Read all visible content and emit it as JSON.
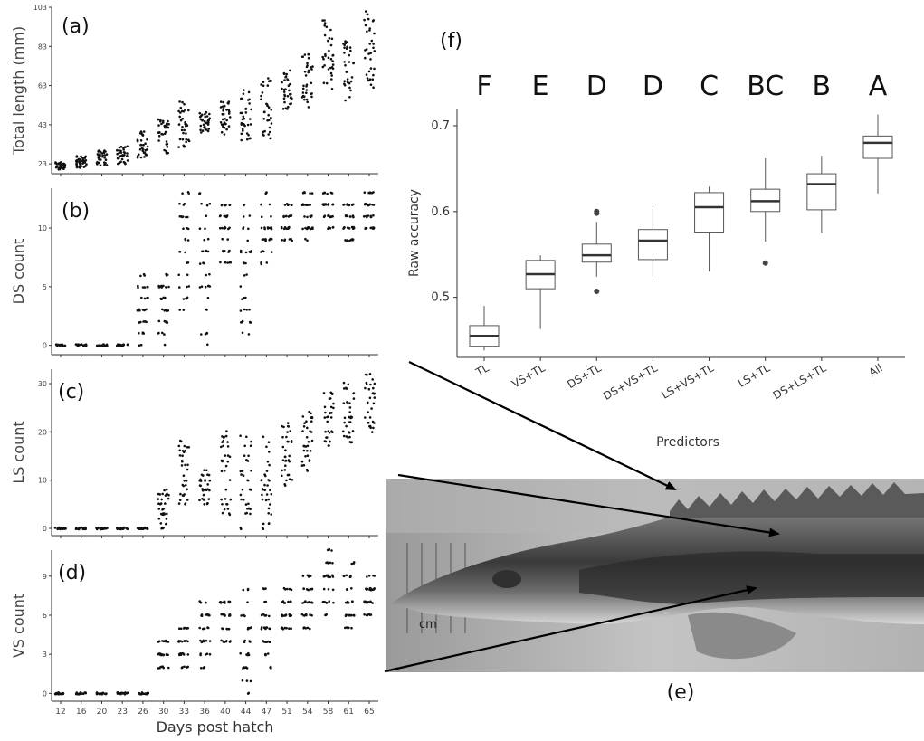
{
  "panels": {
    "a": "(a)",
    "b": "(b)",
    "c": "(c)",
    "d": "(d)",
    "e": "(e)",
    "f": "(f)"
  },
  "photo": {
    "description": "Photograph of juvenile sturgeon head and anterior body with dorsal and lateral scutes",
    "arrow_targets": [
      "dorsal scutes",
      "lateral scutes",
      "ventral scutes"
    ]
  },
  "chart_data": [
    {
      "id": "a",
      "type": "scatter",
      "ylabel": "Total length (mm)",
      "xlabel": "",
      "ylim": [
        18,
        103
      ],
      "yticks": [
        23,
        43,
        63,
        83,
        103
      ],
      "x_categories": [
        "12",
        "16",
        "20",
        "23",
        "26",
        "30",
        "33",
        "36",
        "40",
        "44",
        "47",
        "51",
        "54",
        "58",
        "61",
        "65"
      ],
      "group_ranges": [
        [
          20,
          24
        ],
        [
          21,
          27
        ],
        [
          22,
          30
        ],
        [
          23,
          32
        ],
        [
          26,
          40
        ],
        [
          28,
          46
        ],
        [
          30,
          55
        ],
        [
          38,
          50
        ],
        [
          38,
          55
        ],
        [
          35,
          61
        ],
        [
          35,
          67
        ],
        [
          50,
          71
        ],
        [
          52,
          79
        ],
        [
          60,
          98
        ],
        [
          55,
          86
        ],
        [
          62,
          101
        ]
      ]
    },
    {
      "id": "b",
      "type": "scatter",
      "ylabel": "DS count",
      "xlabel": "",
      "ylim": [
        -0.8,
        13.4
      ],
      "yticks": [
        0,
        5,
        10
      ],
      "x_categories": [
        "12",
        "16",
        "20",
        "23",
        "26",
        "30",
        "33",
        "36",
        "40",
        "44",
        "47",
        "51",
        "54",
        "58",
        "61",
        "65"
      ],
      "group_ranges": [
        [
          0,
          0
        ],
        [
          0,
          0
        ],
        [
          0,
          0
        ],
        [
          0,
          0
        ],
        [
          0,
          6
        ],
        [
          0,
          6
        ],
        [
          3,
          13
        ],
        [
          0,
          13
        ],
        [
          7,
          12
        ],
        [
          0,
          12
        ],
        [
          7,
          13
        ],
        [
          9,
          12
        ],
        [
          9,
          13
        ],
        [
          10,
          13
        ],
        [
          9,
          12
        ],
        [
          10,
          13
        ]
      ]
    },
    {
      "id": "c",
      "type": "scatter",
      "ylabel": "LS count",
      "xlabel": "",
      "ylim": [
        -1.5,
        33
      ],
      "yticks": [
        0,
        10,
        20,
        30
      ],
      "x_categories": [
        "12",
        "16",
        "20",
        "23",
        "26",
        "30",
        "33",
        "36",
        "40",
        "44",
        "47",
        "51",
        "54",
        "58",
        "61",
        "65"
      ],
      "group_ranges": [
        [
          0,
          0
        ],
        [
          0,
          0
        ],
        [
          0,
          0
        ],
        [
          0,
          0
        ],
        [
          0,
          0
        ],
        [
          0,
          8
        ],
        [
          5,
          19
        ],
        [
          5,
          12
        ],
        [
          3,
          20
        ],
        [
          0,
          20
        ],
        [
          0,
          19
        ],
        [
          9,
          22
        ],
        [
          12,
          24
        ],
        [
          17,
          29
        ],
        [
          18,
          30
        ],
        [
          20,
          33
        ]
      ]
    },
    {
      "id": "d",
      "type": "scatter",
      "ylabel": "VS count",
      "xlabel": "Days post hatch",
      "ylim": [
        -0.6,
        11
      ],
      "yticks": [
        0,
        3,
        6,
        9
      ],
      "x_categories": [
        "12",
        "16",
        "20",
        "23",
        "26",
        "30",
        "33",
        "36",
        "40",
        "44",
        "47",
        "51",
        "54",
        "58",
        "61",
        "65"
      ],
      "group_ranges": [
        [
          0,
          0
        ],
        [
          0,
          0
        ],
        [
          0,
          0
        ],
        [
          0,
          0
        ],
        [
          0,
          0
        ],
        [
          2,
          4
        ],
        [
          2,
          5
        ],
        [
          2,
          7
        ],
        [
          4,
          7
        ],
        [
          0,
          8
        ],
        [
          2,
          8
        ],
        [
          5,
          8
        ],
        [
          5,
          9
        ],
        [
          6,
          11
        ],
        [
          5,
          10
        ],
        [
          6,
          9
        ]
      ]
    },
    {
      "id": "f",
      "type": "box",
      "ylabel": "Raw accuracy",
      "xlabel": "Predictors",
      "ylim": [
        0.43,
        0.72
      ],
      "yticks": [
        0.5,
        0.6,
        0.7
      ],
      "categories": [
        "TL",
        "VS+TL",
        "DS+TL",
        "DS+VS+TL",
        "LS+VS+TL",
        "LS+TL",
        "DS+LS+TL",
        "All"
      ],
      "significance": [
        "F",
        "E",
        "D",
        "D",
        "C",
        "BC",
        "B",
        "A"
      ],
      "boxes": [
        {
          "min": 0.438,
          "q1": 0.443,
          "median": 0.455,
          "q3": 0.467,
          "max": 0.49,
          "outliers": []
        },
        {
          "min": 0.463,
          "q1": 0.51,
          "median": 0.527,
          "q3": 0.543,
          "max": 0.549,
          "outliers": []
        },
        {
          "min": 0.524,
          "q1": 0.541,
          "median": 0.549,
          "q3": 0.562,
          "max": 0.588,
          "outliers": [
            0.598,
            0.6,
            0.507
          ]
        },
        {
          "min": 0.524,
          "q1": 0.544,
          "median": 0.566,
          "q3": 0.579,
          "max": 0.603,
          "outliers": []
        },
        {
          "min": 0.53,
          "q1": 0.576,
          "median": 0.605,
          "q3": 0.622,
          "max": 0.629,
          "outliers": []
        },
        {
          "min": 0.565,
          "q1": 0.6,
          "median": 0.612,
          "q3": 0.626,
          "max": 0.662,
          "outliers": [
            0.54
          ]
        },
        {
          "min": 0.575,
          "q1": 0.602,
          "median": 0.632,
          "q3": 0.644,
          "max": 0.665,
          "outliers": []
        },
        {
          "min": 0.621,
          "q1": 0.662,
          "median": 0.68,
          "q3": 0.688,
          "max": 0.713,
          "outliers": []
        }
      ]
    }
  ]
}
